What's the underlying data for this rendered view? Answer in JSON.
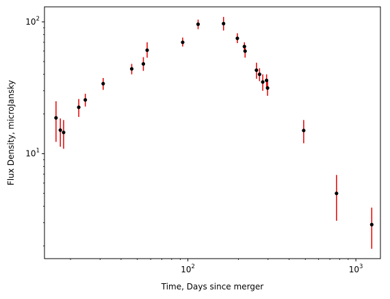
{
  "chart_data": {
    "type": "scatter",
    "title": "",
    "xlabel": "Time, Days since merger",
    "ylabel": "Flux Density, microJansky",
    "xscale": "log",
    "yscale": "log",
    "xlim": [
      14,
      1400
    ],
    "ylim": [
      1.6,
      130
    ],
    "grid": false,
    "legend": "none",
    "marker_color": "#000000",
    "errorbar_color": "#e00000",
    "x_major_ticks": [
      {
        "value": 100,
        "base": "10",
        "exp": "2"
      },
      {
        "value": 1000,
        "base": "10",
        "exp": "3"
      }
    ],
    "y_major_ticks": [
      {
        "value": 10,
        "base": "10",
        "exp": "1"
      },
      {
        "value": 100,
        "base": "10",
        "exp": "2"
      }
    ],
    "points": [
      {
        "x": 16.4,
        "y": 18.7,
        "err_low": 12.3,
        "err_high": 25.0
      },
      {
        "x": 17.4,
        "y": 15.1,
        "err_low": 11.3,
        "err_high": 18.5
      },
      {
        "x": 18.2,
        "y": 14.5,
        "err_low": 10.9,
        "err_high": 18.0
      },
      {
        "x": 22.4,
        "y": 22.5,
        "err_low": 19.0,
        "err_high": 26.0
      },
      {
        "x": 24.5,
        "y": 25.6,
        "err_low": 22.8,
        "err_high": 28.5
      },
      {
        "x": 31.3,
        "y": 34.0,
        "err_low": 30.5,
        "err_high": 37.5
      },
      {
        "x": 46.3,
        "y": 44.0,
        "err_low": 40.0,
        "err_high": 48.0
      },
      {
        "x": 54.3,
        "y": 48.0,
        "err_low": 42.5,
        "err_high": 54.0
      },
      {
        "x": 57.2,
        "y": 61.0,
        "err_low": 53.5,
        "err_high": 70.0
      },
      {
        "x": 93.1,
        "y": 70.0,
        "err_low": 65.0,
        "err_high": 76.0
      },
      {
        "x": 115,
        "y": 96.0,
        "err_low": 88.0,
        "err_high": 104.0
      },
      {
        "x": 163,
        "y": 97.0,
        "err_low": 86.0,
        "err_high": 109.0
      },
      {
        "x": 197,
        "y": 75.0,
        "err_low": 69.0,
        "err_high": 82.0
      },
      {
        "x": 217,
        "y": 65.0,
        "err_low": 59.5,
        "err_high": 70.0
      },
      {
        "x": 219,
        "y": 60.0,
        "err_low": 53.5,
        "err_high": 66.0
      },
      {
        "x": 256,
        "y": 43.0,
        "err_low": 37.0,
        "err_high": 49.0
      },
      {
        "x": 267,
        "y": 40.0,
        "err_low": 35.5,
        "err_high": 44.5
      },
      {
        "x": 279,
        "y": 35.0,
        "err_low": 30.0,
        "err_high": 40.0
      },
      {
        "x": 294,
        "y": 36.0,
        "err_low": 32.0,
        "err_high": 40.0
      },
      {
        "x": 298,
        "y": 31.5,
        "err_low": 27.5,
        "err_high": 35.5
      },
      {
        "x": 489,
        "y": 15.0,
        "err_low": 12.0,
        "err_high": 18.0
      },
      {
        "x": 767,
        "y": 5.0,
        "err_low": 3.1,
        "err_high": 6.9
      },
      {
        "x": 1243,
        "y": 2.9,
        "err_low": 1.9,
        "err_high": 3.9
      }
    ]
  }
}
